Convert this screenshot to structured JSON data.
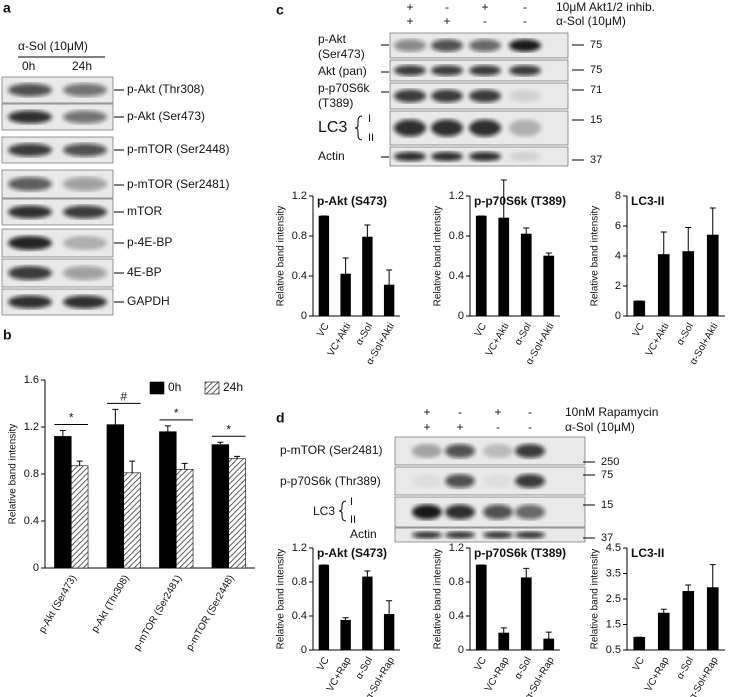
{
  "panels": {
    "a": {
      "label": "a",
      "header": "α-Sol (10μM)",
      "columns": [
        "0h",
        "24h"
      ],
      "bands": [
        "p-Akt (Thr308)",
        "p-Akt (Ser473)",
        "p-mTOR (Ser2448)",
        "p-mTOR (Ser2481)",
        "mTOR",
        "p-4E-BP",
        "4E-BP",
        "GAPDH"
      ]
    },
    "b": {
      "label": "b"
    },
    "c": {
      "label": "c",
      "treatments": [
        {
          "name": "10μM Akt1/2 inhib.",
          "signs": [
            "+",
            "-",
            "+",
            "-"
          ]
        },
        {
          "name": "α-Sol (10μM)",
          "signs": [
            "+",
            "+",
            "-",
            "-"
          ]
        }
      ],
      "bands": [
        "p-Akt",
        "(Ser473)",
        "Akt (pan)",
        "p-p70S6k",
        "(T389)",
        "LC3",
        "I",
        "II",
        "Actin"
      ],
      "markers": [
        "75",
        "75",
        "71",
        "15",
        "37"
      ]
    },
    "d": {
      "label": "d",
      "treatments": [
        {
          "name": "10nM Rapamycin",
          "signs": [
            "+",
            "-",
            "+",
            "-"
          ]
        },
        {
          "name": "α-Sol (10μM)",
          "signs": [
            "+",
            "+",
            "-",
            "-"
          ]
        }
      ],
      "bands": [
        "p-mTOR (Ser2481)",
        "p-p70S6k (Thr389)",
        "LC3",
        "I",
        "II",
        "Actin"
      ],
      "markers": [
        "250",
        "75",
        "15",
        "37"
      ]
    }
  },
  "chart_data": [
    {
      "type": "bar",
      "ylabel": "Relative band intensity",
      "categories": [
        "p-Akt (Ser473)",
        "p-Akt (Thr308)",
        "p-mTOR (Ser2481)",
        "p-mTOR (Ser2448)"
      ],
      "series": [
        {
          "name": "0h",
          "color": "#000000",
          "values": [
            1.12,
            1.22,
            1.16,
            1.05
          ],
          "errors": [
            0.05,
            0.13,
            0.05,
            0.02
          ]
        },
        {
          "name": "24h",
          "color": "#000000",
          "hatch": true,
          "values": [
            0.87,
            0.81,
            0.84,
            0.93
          ],
          "errors": [
            0.04,
            0.1,
            0.05,
            0.02
          ]
        }
      ],
      "annotations": [
        "*",
        "#",
        "*",
        "*"
      ],
      "ylim": [
        0,
        1.6
      ],
      "yticks": [
        0,
        0.4,
        0.8,
        1.2,
        1.6
      ],
      "legend": "upper right"
    },
    {
      "type": "bar",
      "title": "p-Akt (S473)",
      "ylabel": "Relative band intensity",
      "categories": [
        "VC",
        "VC+Akti",
        "α-Sol",
        "α-Sol+Akti"
      ],
      "color": "#000000",
      "values": [
        1.0,
        0.42,
        0.79,
        0.31
      ],
      "errors": [
        0,
        0.16,
        0.12,
        0.15
      ],
      "ylim": [
        0,
        1.2
      ],
      "yticks": [
        0,
        0.4,
        0.8,
        1.2
      ]
    },
    {
      "type": "bar",
      "title": "p-p70S6k (T389)",
      "ylabel": "Relative band intensity",
      "categories": [
        "VC",
        "VC+Akti",
        "α-Sol",
        "α-Sol+Akti"
      ],
      "color": "#000000",
      "values": [
        1.0,
        0.98,
        0.82,
        0.6
      ],
      "errors": [
        0,
        0.38,
        0.06,
        0.03
      ],
      "ylim": [
        0,
        1.2
      ],
      "yticks": [
        0,
        0.4,
        0.8,
        1.2
      ]
    },
    {
      "type": "bar",
      "title": "LC3-II",
      "ylabel": "Relative band intensity",
      "categories": [
        "VC",
        "VC+Akti",
        "α-Sol",
        "α-Sol+Akti"
      ],
      "color": "#000000",
      "values": [
        1.0,
        4.1,
        4.3,
        5.4
      ],
      "errors": [
        0,
        1.5,
        1.6,
        1.8
      ],
      "ylim": [
        0,
        8
      ],
      "yticks": [
        0,
        2,
        4,
        6,
        8
      ]
    },
    {
      "type": "bar",
      "title": "p-Akt (S473)",
      "ylabel": "Relative band intensity",
      "categories": [
        "VC",
        "VC+Rap",
        "α-Sol",
        "α-Sol+Rap"
      ],
      "color": "#000000",
      "values": [
        1.0,
        0.35,
        0.86,
        0.42
      ],
      "errors": [
        0,
        0.03,
        0.07,
        0.16
      ],
      "ylim": [
        0,
        1.2
      ],
      "yticks": [
        0,
        0.4,
        0.8,
        1.2
      ]
    },
    {
      "type": "bar",
      "title": "p-p70S6k (T389)",
      "ylabel": "Relative band intensity",
      "categories": [
        "VC",
        "VC+Rap",
        "α-Sol",
        "α-Sol+Rap"
      ],
      "color": "#000000",
      "values": [
        1.0,
        0.2,
        0.85,
        0.13
      ],
      "errors": [
        0,
        0.06,
        0.11,
        0.08
      ],
      "ylim": [
        0,
        1.2
      ],
      "yticks": [
        0,
        0.4,
        0.8,
        1.2
      ]
    },
    {
      "type": "bar",
      "title": "LC3-II",
      "ylabel": "Relative band intensity",
      "categories": [
        "VC",
        "VC+Rap",
        "α-Sol",
        "α-Sol+Rap"
      ],
      "color": "#000000",
      "values": [
        1.0,
        1.95,
        2.8,
        2.95
      ],
      "errors": [
        0,
        0.15,
        0.25,
        0.9
      ],
      "ylim": [
        0.5,
        4.5
      ],
      "yticks": [
        0.5,
        1.5,
        2.5,
        3.5,
        4.5
      ]
    }
  ]
}
